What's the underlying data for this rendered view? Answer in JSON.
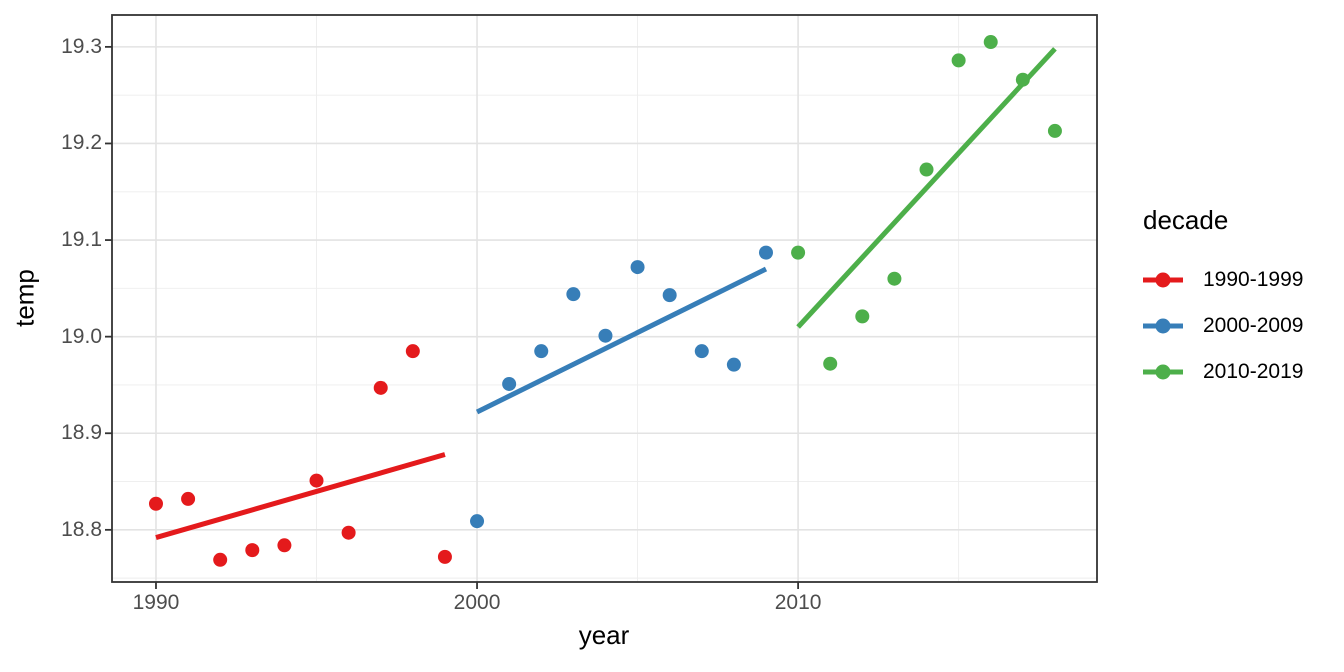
{
  "figure": {
    "background": "#FFFFFF"
  },
  "chart_data": {
    "type": "scatter",
    "title": "",
    "xlabel": "year",
    "ylabel": "temp",
    "legend_title": "decade",
    "legend_position": "right",
    "grid": true,
    "xlim": [
      1988.63,
      2019.31
    ],
    "ylim": [
      18.746,
      19.333
    ],
    "x_major_ticks": [
      1990,
      2000,
      2010
    ],
    "x_tick_labels": [
      "1990",
      "2000",
      "2010"
    ],
    "x_minor_ticks": [
      1995,
      2005,
      2015
    ],
    "y_major_ticks": [
      18.8,
      18.9,
      19.0,
      19.1,
      19.2,
      19.3
    ],
    "y_tick_labels": [
      "18.8",
      "18.9",
      "19.0",
      "19.1",
      "19.2",
      "19.3"
    ],
    "y_minor_ticks": [
      18.75,
      18.85,
      18.95,
      19.05,
      19.15,
      19.25
    ],
    "series": [
      {
        "name": "1990-1999",
        "color": "#E41A1C",
        "x": [
          1990,
          1991,
          1992,
          1993,
          1994,
          1995,
          1996,
          1997,
          1998,
          1999
        ],
        "y": [
          18.827,
          18.832,
          18.769,
          18.779,
          18.784,
          18.851,
          18.797,
          18.947,
          18.985,
          18.772
        ],
        "trend": {
          "x1": 1990,
          "y1": 18.792,
          "x2": 1999,
          "y2": 18.878
        }
      },
      {
        "name": "2000-2009",
        "color": "#377EB8",
        "x": [
          2000,
          2001,
          2002,
          2003,
          2004,
          2005,
          2006,
          2007,
          2008,
          2009
        ],
        "y": [
          18.809,
          18.951,
          18.985,
          19.044,
          19.001,
          19.072,
          19.043,
          18.985,
          18.971,
          19.087
        ],
        "trend": {
          "x1": 2000,
          "y1": 18.922,
          "x2": 2009,
          "y2": 19.07
        }
      },
      {
        "name": "2010-2019",
        "color": "#4DAF4A",
        "x": [
          2010,
          2011,
          2012,
          2013,
          2014,
          2015,
          2016,
          2017,
          2018
        ],
        "y": [
          19.087,
          18.972,
          19.021,
          19.06,
          19.173,
          19.286,
          19.305,
          19.266,
          19.213
        ],
        "trend": {
          "x1": 2010,
          "y1": 19.01,
          "x2": 2018,
          "y2": 19.298
        }
      }
    ],
    "style": {
      "point_radius": 7,
      "trend_width": 5,
      "grid_major_color": "#E3E3E3",
      "grid_minor_color": "#EDEDED",
      "panel_border_color": "#333333",
      "tick_mark_color": "#333333",
      "tick_label_color": "#4D4D4D",
      "axis_title_color": "#000000",
      "panel_background": "#FFFFFF"
    }
  }
}
